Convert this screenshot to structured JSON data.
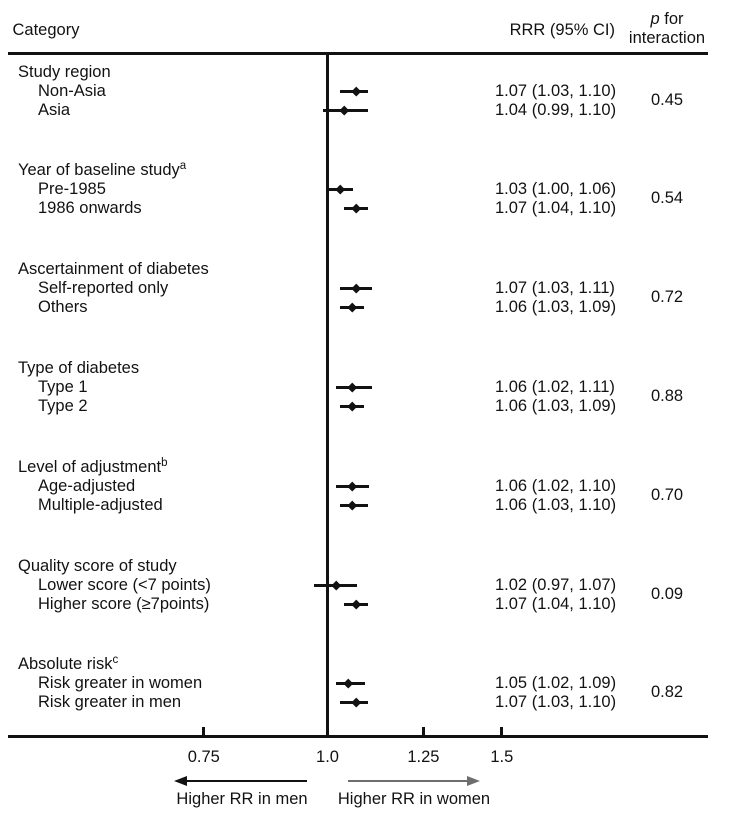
{
  "header": {
    "category": "Category",
    "rrr_header": "RRR (95% CI)",
    "p_word": "p",
    "p_rest": " for",
    "p_line2": "interaction"
  },
  "chart_data": {
    "type": "forest",
    "x_scale": "log10",
    "x_tick_labels": [
      "0.75",
      "1.0",
      "1.25",
      "1.5"
    ],
    "x_tick_values": [
      0.75,
      1.0,
      1.25,
      1.5
    ],
    "reference_line": 1.0,
    "x_axis_range": [
      0.62,
      1.85
    ],
    "direction_labels": {
      "left": "Higher RR in men",
      "right": "Higher RR in women"
    },
    "groups": [
      {
        "label": "Study region",
        "sup": "",
        "p": "0.45",
        "items": [
          {
            "name": "Non-Asia",
            "est": 1.07,
            "lo": 1.03,
            "hi": 1.1,
            "ci_text": "1.07 (1.03, 1.10)"
          },
          {
            "name": "Asia",
            "est": 1.04,
            "lo": 0.99,
            "hi": 1.1,
            "ci_text": "1.04 (0.99, 1.10)"
          }
        ]
      },
      {
        "label": "Year of baseline study",
        "sup": "a",
        "p": "0.54",
        "items": [
          {
            "name": "Pre-1985",
            "est": 1.03,
            "lo": 1.0,
            "hi": 1.06,
            "ci_text": "1.03 (1.00, 1.06)"
          },
          {
            "name": "1986 onwards",
            "est": 1.07,
            "lo": 1.04,
            "hi": 1.1,
            "ci_text": "1.07 (1.04, 1.10)"
          }
        ]
      },
      {
        "label": "Ascertainment of diabetes",
        "sup": "",
        "p": "0.72",
        "items": [
          {
            "name": "Self-reported only",
            "est": 1.07,
            "lo": 1.03,
            "hi": 1.11,
            "ci_text": "1.07 (1.03, 1.11)"
          },
          {
            "name": "Others",
            "est": 1.06,
            "lo": 1.03,
            "hi": 1.09,
            "ci_text": "1.06 (1.03, 1.09)"
          }
        ]
      },
      {
        "label": "Type of diabetes",
        "sup": "",
        "p": "0.88",
        "items": [
          {
            "name": "Type 1",
            "est": 1.06,
            "lo": 1.02,
            "hi": 1.11,
            "ci_text": "1.06 (1.02, 1.11)"
          },
          {
            "name": "Type 2",
            "est": 1.06,
            "lo": 1.03,
            "hi": 1.09,
            "ci_text": "1.06 (1.03, 1.09)"
          }
        ]
      },
      {
        "label": "Level of adjustment",
        "sup": "b",
        "p": "0.70",
        "items": [
          {
            "name": "Age-adjusted",
            "est": 1.06,
            "lo": 1.02,
            "hi": 1.1,
            "ci_text": "1.06 (1.02, 1.10)"
          },
          {
            "name": "Multiple-adjusted",
            "est": 1.06,
            "lo": 1.03,
            "hi": 1.1,
            "ci_text": "1.06 (1.03, 1.10)"
          }
        ]
      },
      {
        "label": "Quality score of study",
        "sup": "",
        "p": "0.09",
        "items": [
          {
            "name": "Lower score (<7 points)",
            "est": 1.02,
            "lo": 0.97,
            "hi": 1.07,
            "ci_text": "1.02 (0.97, 1.07)"
          },
          {
            "name": "Higher score (≥7points)",
            "est": 1.07,
            "lo": 1.04,
            "hi": 1.1,
            "ci_text": "1.07 (1.04, 1.10)"
          }
        ]
      },
      {
        "label": "Absolute risk",
        "sup": "c",
        "p": "0.82",
        "items": [
          {
            "name": "Risk greater in women",
            "est": 1.05,
            "lo": 1.02,
            "hi": 1.09,
            "ci_text": "1.05 (1.02, 1.09)"
          },
          {
            "name": "Risk greater in men",
            "est": 1.07,
            "lo": 1.03,
            "hi": 1.1,
            "ci_text": "1.07 (1.03, 1.10)"
          }
        ]
      }
    ]
  },
  "colors": {
    "ink": "#121212",
    "right_arrow_gray": "#6e6e6e"
  }
}
